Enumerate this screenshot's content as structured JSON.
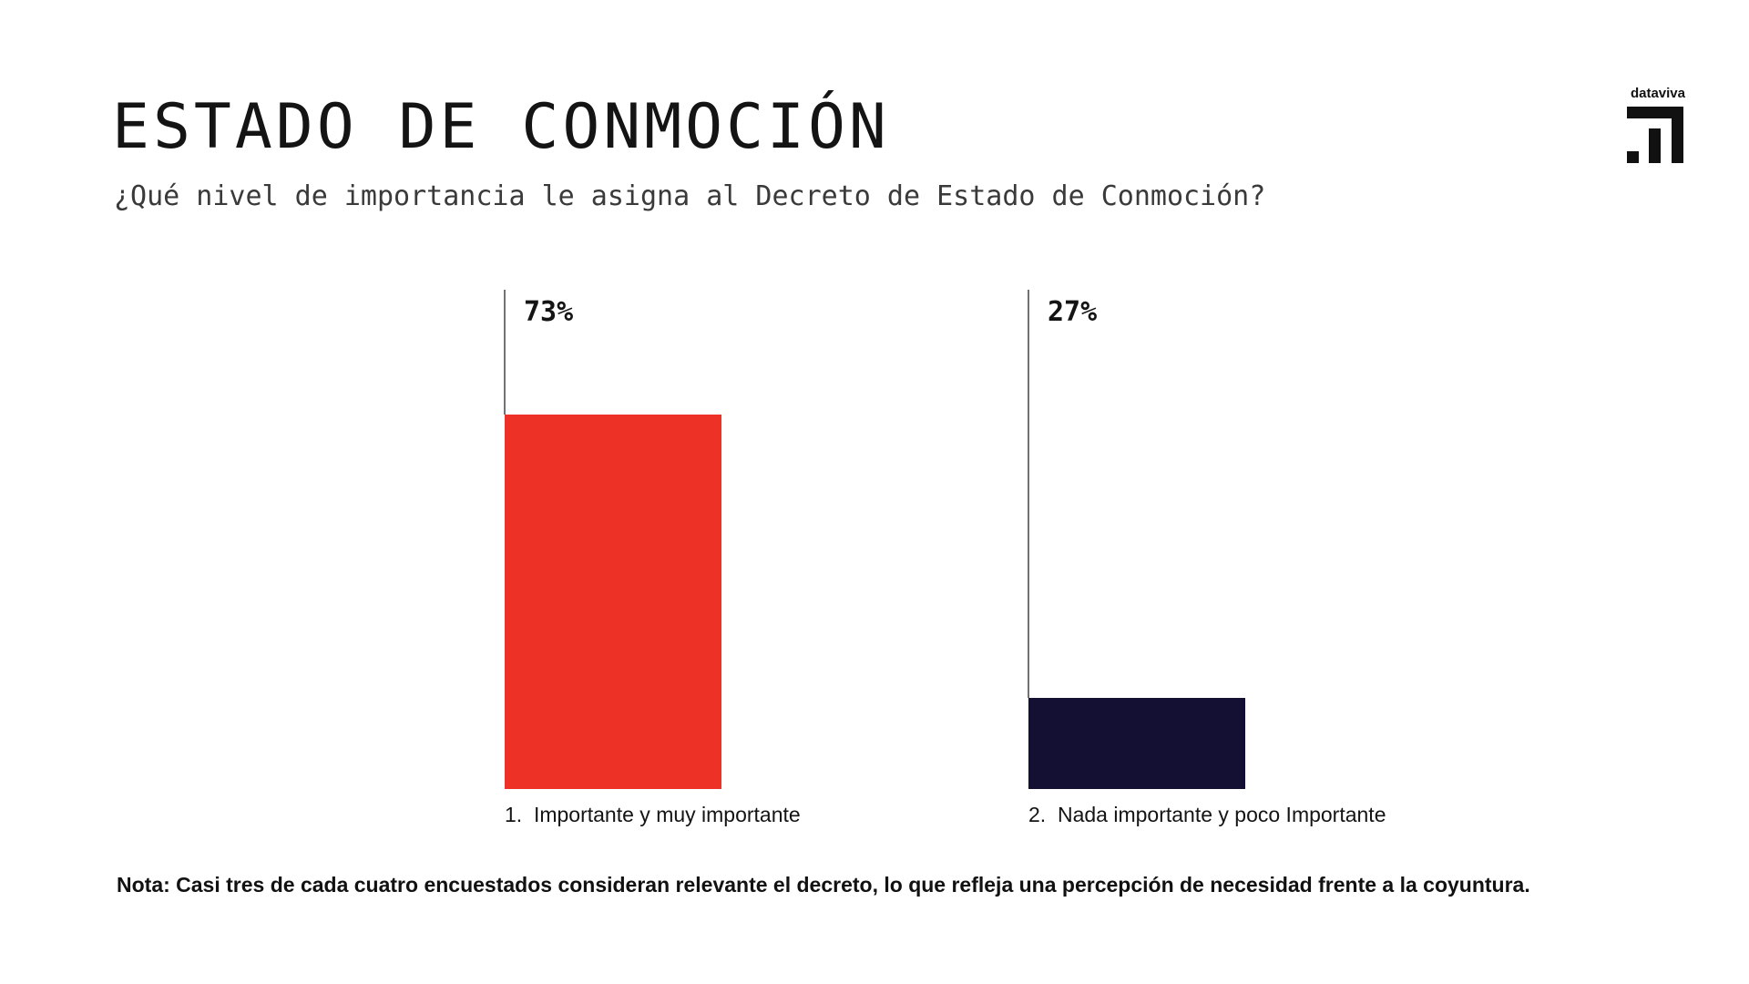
{
  "header": {
    "title": "ESTADO DE CONMOCIÓN",
    "subtitle": "¿Qué nivel de importancia le asigna al Decreto de Estado de Conmoción?"
  },
  "brand": {
    "name": "dataviva",
    "icon": "dataviva-logo-icon"
  },
  "note": "Nota: Casi tres de cada cuatro encuestados consideran relevante el decreto, lo que refleja una percepción de necesidad frente a la coyuntura.",
  "chart_data": {
    "type": "bar",
    "categories": [
      "1.  Importante y muy importante",
      "2.  Nada importante y poco Importante"
    ],
    "values": [
      73,
      27
    ],
    "value_labels": [
      "73%",
      "27%"
    ],
    "colors": [
      "#EE3127",
      "#141033"
    ],
    "ylim": [
      0,
      100
    ],
    "grid": false,
    "legend": "none"
  }
}
